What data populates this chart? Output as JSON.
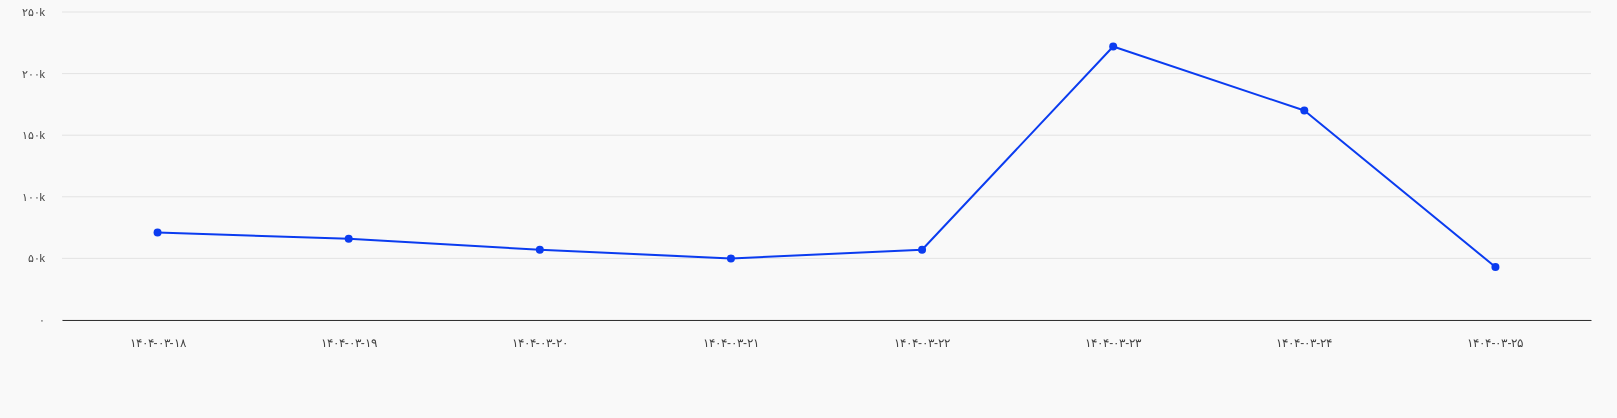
{
  "chart_data": {
    "type": "line",
    "categories": [
      "۱۴۰۴-۰۳-۱۸",
      "۱۴۰۴-۰۳-۱۹",
      "۱۴۰۴-۰۳-۲۰",
      "۱۴۰۴-۰۳-۲۱",
      "۱۴۰۴-۰۳-۲۲",
      "۱۴۰۴-۰۳-۲۳",
      "۱۴۰۴-۰۳-۲۴",
      "۱۴۰۴-۰۳-۲۵"
    ],
    "series": [
      {
        "color": "#0b3cf0",
        "values": [
          71000,
          66000,
          57000,
          50000,
          57000,
          222000,
          170000,
          43000
        ]
      }
    ],
    "ylim": [
      0,
      250000
    ],
    "yticks": [
      {
        "value": 0,
        "label": "۰"
      },
      {
        "value": 50000,
        "label": "۵۰k"
      },
      {
        "value": 100000,
        "label": "۱۰۰k"
      },
      {
        "value": 150000,
        "label": "۱۵۰k"
      },
      {
        "value": 200000,
        "label": "۲۰۰k"
      },
      {
        "value": 250000,
        "label": "۲۵۰k"
      }
    ],
    "grid": "y",
    "marker": "circle",
    "line_style": "solid"
  }
}
